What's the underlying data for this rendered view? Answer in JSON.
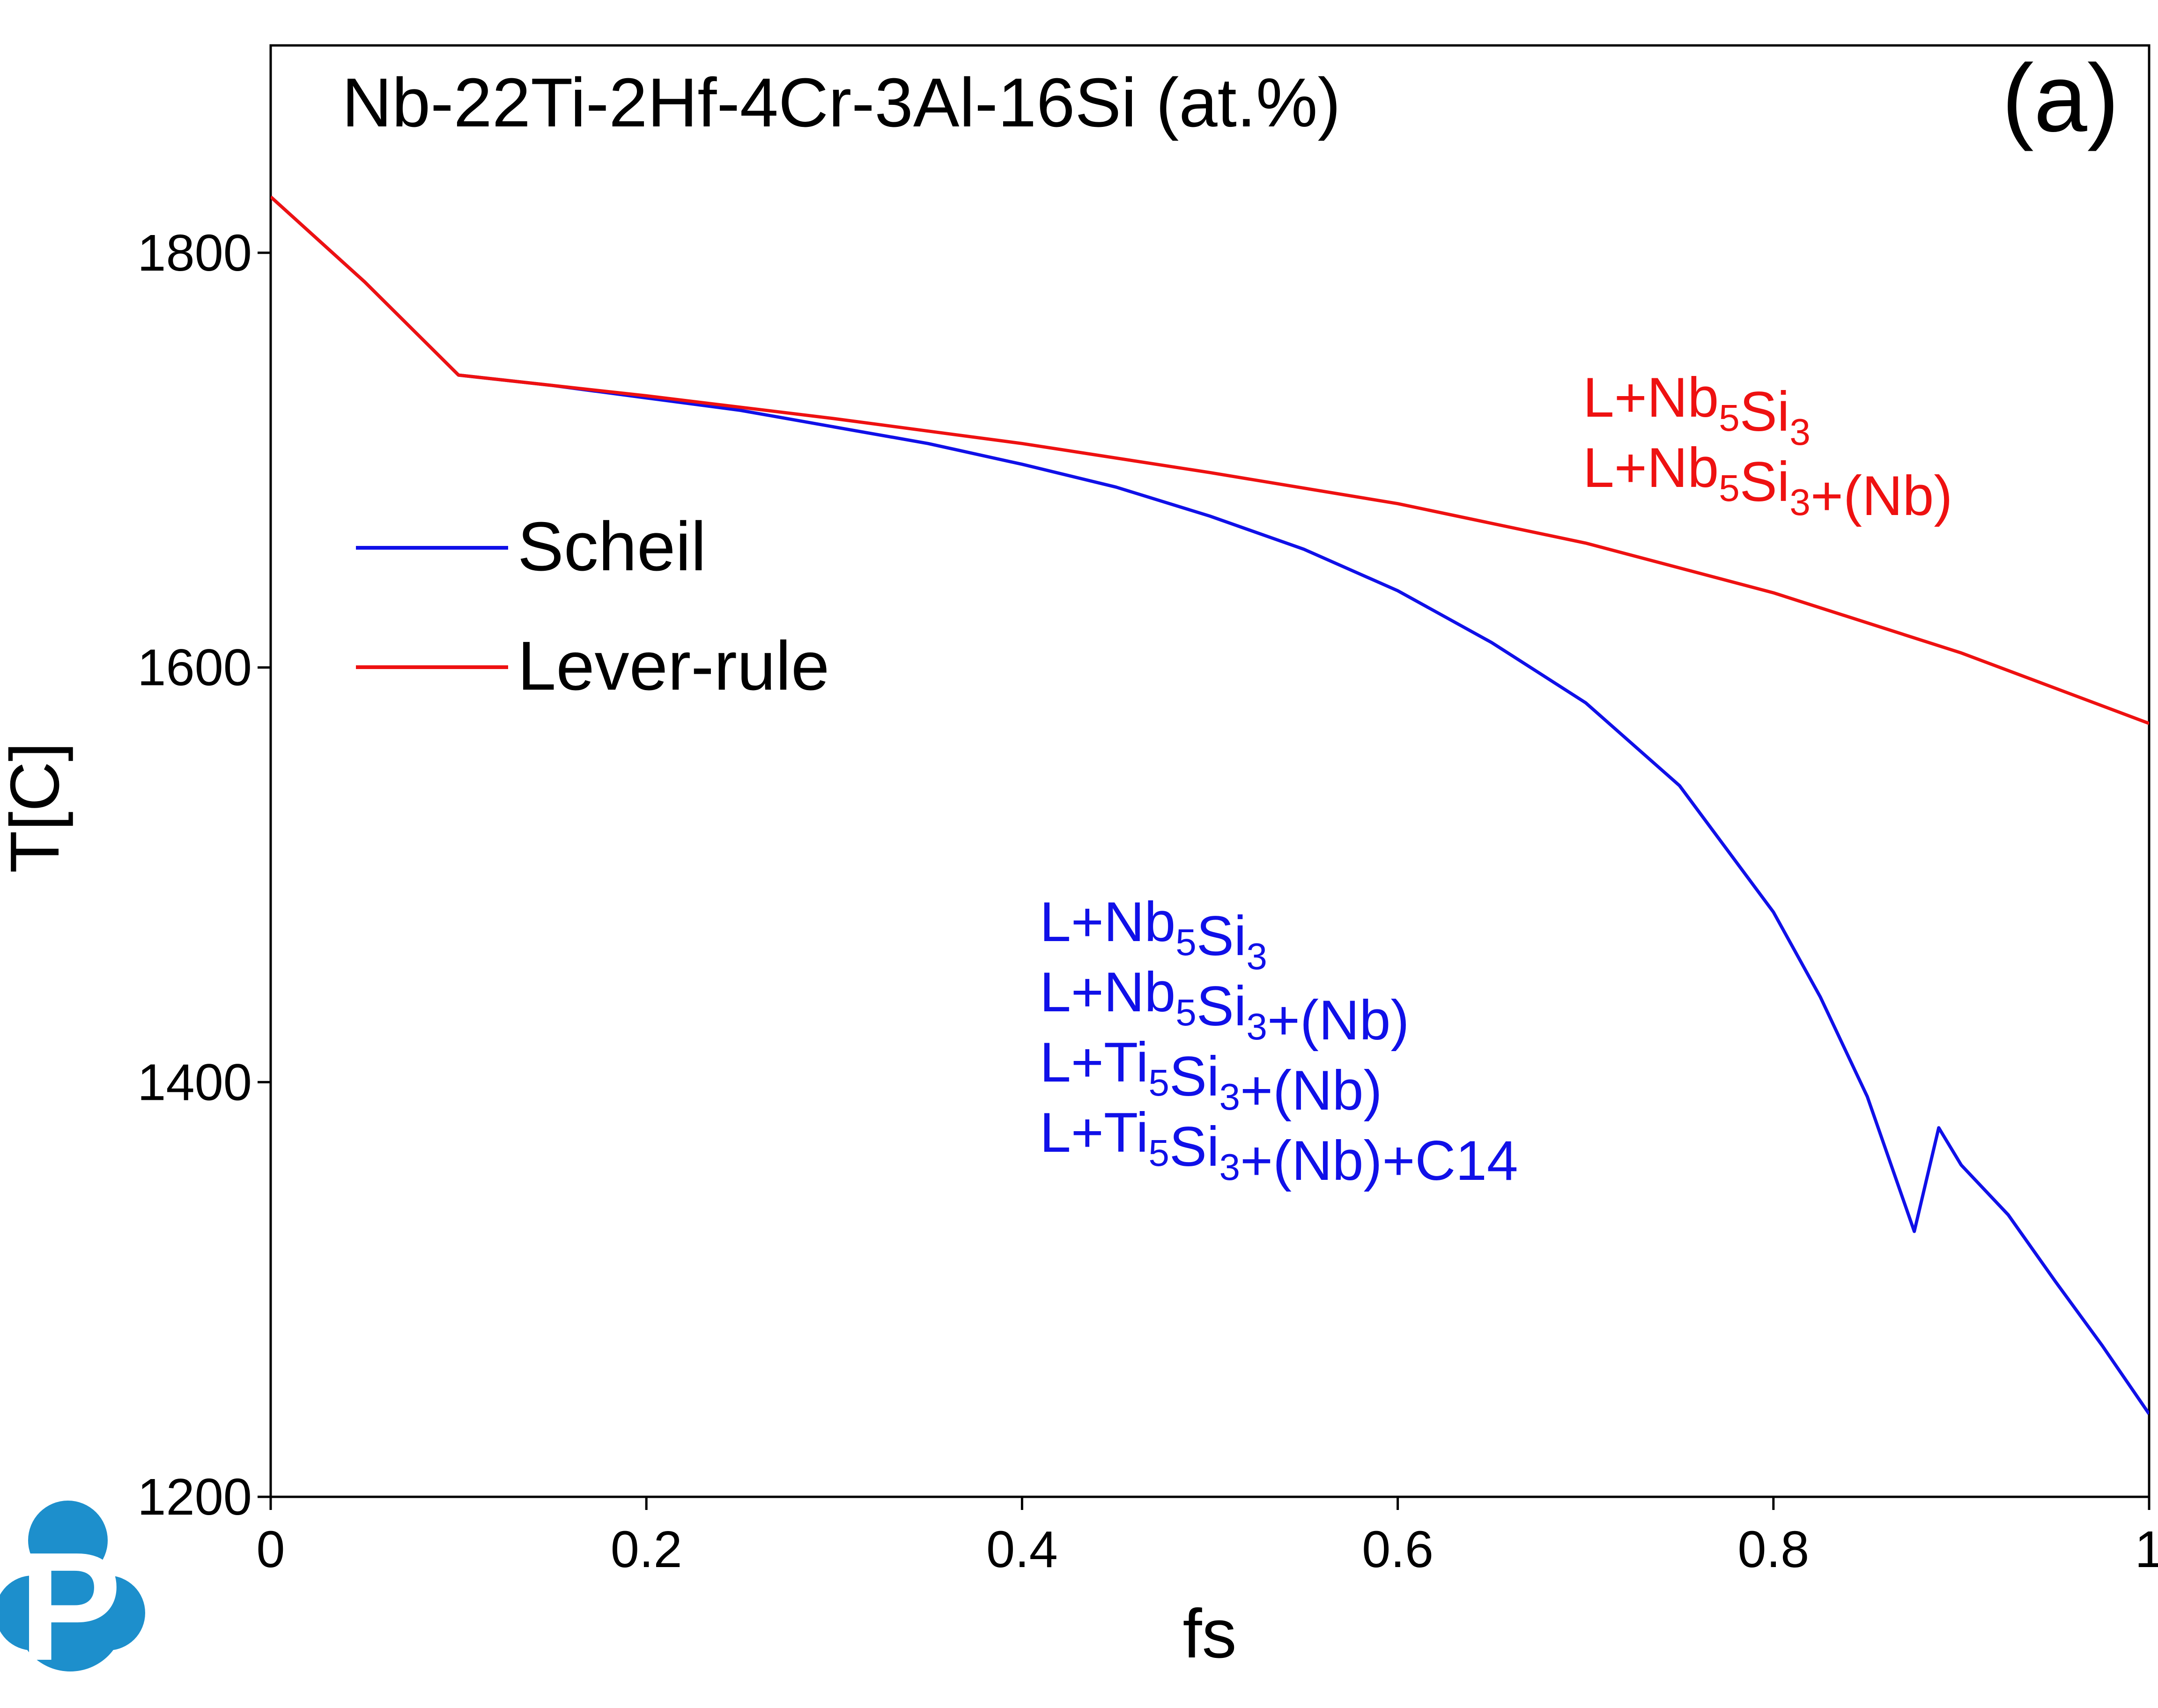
{
  "chart_data": {
    "type": "line",
    "title": "Nb-22Ti-2Hf-4Cr-3Al-16Si (at.%)",
    "panel_label": "(a)",
    "xlabel": "fs",
    "ylabel": "T[C]",
    "xlim": [
      0,
      1
    ],
    "ylim": [
      1200,
      1900
    ],
    "x_ticks": [
      0,
      0.2,
      0.4,
      0.6,
      0.8,
      1
    ],
    "x_tick_labels": [
      "0",
      "0.2",
      "0.4",
      "0.6",
      "0.8",
      "1"
    ],
    "y_ticks": [
      1200,
      1400,
      1600,
      1800
    ],
    "y_tick_labels": [
      "1200",
      "1400",
      "1600",
      "1800"
    ],
    "grid": false,
    "legend_position": "upper-left",
    "series": [
      {
        "name": "Scheil",
        "color": "#1010e8",
        "points": [
          [
            0,
            1827
          ],
          [
            0.05,
            1786
          ],
          [
            0.1,
            1741
          ],
          [
            0.15,
            1736
          ],
          [
            0.2,
            1730
          ],
          [
            0.25,
            1724
          ],
          [
            0.3,
            1716
          ],
          [
            0.35,
            1708
          ],
          [
            0.4,
            1698
          ],
          [
            0.45,
            1687
          ],
          [
            0.5,
            1673
          ],
          [
            0.55,
            1657
          ],
          [
            0.6,
            1637
          ],
          [
            0.65,
            1612
          ],
          [
            0.7,
            1583
          ],
          [
            0.75,
            1543
          ],
          [
            0.8,
            1482
          ],
          [
            0.825,
            1441
          ],
          [
            0.85,
            1393
          ],
          [
            0.875,
            1328
          ],
          [
            0.888,
            1378
          ],
          [
            0.9,
            1360
          ],
          [
            0.925,
            1336
          ],
          [
            0.95,
            1304
          ],
          [
            0.975,
            1273
          ],
          [
            1,
            1240
          ]
        ]
      },
      {
        "name": "Lever-rule",
        "color": "#ee1111",
        "points": [
          [
            0,
            1827
          ],
          [
            0.05,
            1786
          ],
          [
            0.1,
            1741
          ],
          [
            0.2,
            1731
          ],
          [
            0.3,
            1720
          ],
          [
            0.4,
            1708
          ],
          [
            0.5,
            1694
          ],
          [
            0.6,
            1679
          ],
          [
            0.7,
            1660
          ],
          [
            0.8,
            1636
          ],
          [
            0.9,
            1607
          ],
          [
            1,
            1573
          ]
        ]
      }
    ],
    "annotations": [
      {
        "color": "#ee1111",
        "lines": [
          [
            {
              "t": "L+Nb"
            },
            {
              "t": "5",
              "sub": true
            },
            {
              "t": "Si"
            },
            {
              "t": "3",
              "sub": true
            }
          ],
          [
            {
              "t": "L+Nb"
            },
            {
              "t": "5",
              "sub": true
            },
            {
              "t": "Si"
            },
            {
              "t": "3",
              "sub": true
            },
            {
              "t": "+(Nb)"
            }
          ]
        ]
      },
      {
        "color": "#1010e8",
        "lines": [
          [
            {
              "t": "L+Nb"
            },
            {
              "t": "5",
              "sub": true
            },
            {
              "t": "Si"
            },
            {
              "t": "3",
              "sub": true
            }
          ],
          [
            {
              "t": "L+Nb"
            },
            {
              "t": "5",
              "sub": true
            },
            {
              "t": "Si"
            },
            {
              "t": "3",
              "sub": true
            },
            {
              "t": "+(Nb)"
            }
          ],
          [
            {
              "t": "L+Ti"
            },
            {
              "t": "5",
              "sub": true
            },
            {
              "t": "Si"
            },
            {
              "t": "3",
              "sub": true
            },
            {
              "t": "+(Nb)"
            }
          ],
          [
            {
              "t": "L+Ti"
            },
            {
              "t": "5",
              "sub": true
            },
            {
              "t": "Si"
            },
            {
              "t": "3",
              "sub": true
            },
            {
              "t": "+(Nb)+C14"
            }
          ]
        ]
      }
    ]
  },
  "logo": {
    "color": "#1d8fcc",
    "letter": "P",
    "icon": "cloud-p-logo-icon"
  }
}
